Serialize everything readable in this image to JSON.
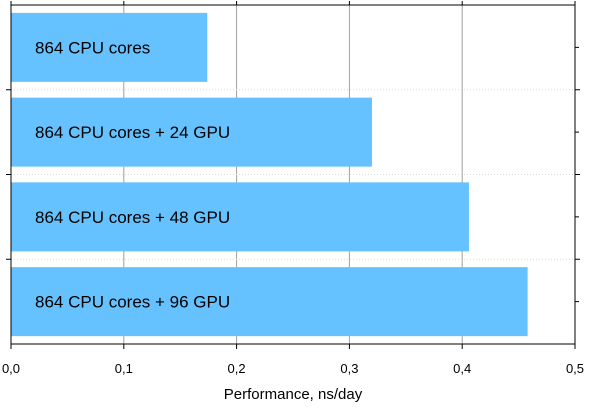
{
  "chart_data": {
    "type": "bar",
    "orientation": "horizontal",
    "categories": [
      "864 CPU cores",
      "864 CPU cores + 24 GPU",
      "864 CPU cores + 48 GPU",
      "864 CPU cores + 96 GPU"
    ],
    "values": [
      0.174,
      0.32,
      0.406,
      0.458
    ],
    "xlabel": "Performance, ns/day",
    "xlim": [
      0.0,
      0.5
    ],
    "xticks": [
      0.0,
      0.1,
      0.2,
      0.3,
      0.4,
      0.5
    ],
    "xtick_labels": [
      "0,0",
      "0,1",
      "0,2",
      "0,3",
      "0,4",
      "0,5"
    ],
    "grid": "vertical",
    "bar_color": "#66c2ff",
    "grid_color": "#a0a0a0"
  }
}
